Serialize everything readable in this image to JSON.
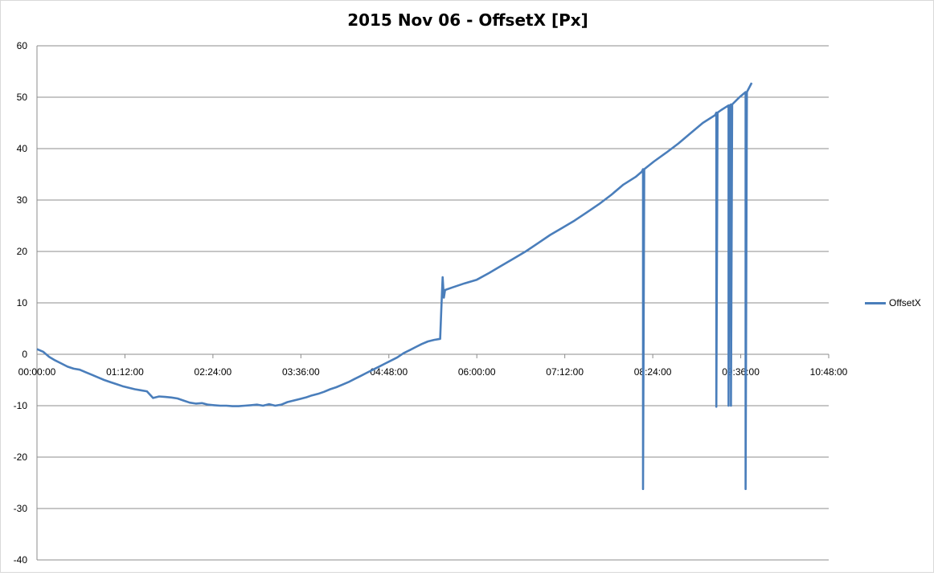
{
  "chart_data": {
    "type": "line",
    "title": "2015 Nov 06 -  OffsetX  [Px]",
    "xlabel": "",
    "ylabel": "",
    "ylim": [
      -40,
      60
    ],
    "yticks": [
      60,
      50,
      40,
      30,
      20,
      10,
      0,
      -10,
      -20,
      -30,
      -40
    ],
    "xlim_minutes": [
      0,
      648
    ],
    "xticks": [
      "00:00:00",
      "01:12:00",
      "02:24:00",
      "03:36:00",
      "04:48:00",
      "06:00:00",
      "07:12:00",
      "08:24:00",
      "09:36:00",
      "10:48:00"
    ],
    "grid": true,
    "legend_position": "right",
    "series": [
      {
        "name": "OffsetX",
        "color": "#4a7ebb",
        "points": [
          [
            "00:00",
            1.0
          ],
          [
            "00:05",
            0.5
          ],
          [
            "00:10",
            -0.5
          ],
          [
            "00:15",
            -1.2
          ],
          [
            "00:20",
            -1.8
          ],
          [
            "00:25",
            -2.4
          ],
          [
            "00:30",
            -2.8
          ],
          [
            "00:35",
            -3.0
          ],
          [
            "00:40",
            -3.5
          ],
          [
            "00:45",
            -4.0
          ],
          [
            "00:50",
            -4.5
          ],
          [
            "00:55",
            -5.0
          ],
          [
            "01:00",
            -5.4
          ],
          [
            "01:05",
            -5.8
          ],
          [
            "01:10",
            -6.2
          ],
          [
            "01:15",
            -6.5
          ],
          [
            "01:20",
            -6.8
          ],
          [
            "01:25",
            -7.0
          ],
          [
            "01:30",
            -7.2
          ],
          [
            "01:35",
            -8.5
          ],
          [
            "01:40",
            -8.2
          ],
          [
            "01:45",
            -8.3
          ],
          [
            "01:50",
            -8.4
          ],
          [
            "01:55",
            -8.6
          ],
          [
            "02:00",
            -9.0
          ],
          [
            "02:05",
            -9.4
          ],
          [
            "02:10",
            -9.6
          ],
          [
            "02:15",
            -9.5
          ],
          [
            "02:20",
            -9.8
          ],
          [
            "02:25",
            -9.9
          ],
          [
            "02:30",
            -10.0
          ],
          [
            "02:35",
            -10.0
          ],
          [
            "02:40",
            -10.1
          ],
          [
            "02:45",
            -10.1
          ],
          [
            "02:50",
            -10.0
          ],
          [
            "02:55",
            -9.9
          ],
          [
            "03:00",
            -9.8
          ],
          [
            "03:05",
            -10.0
          ],
          [
            "03:10",
            -9.7
          ],
          [
            "03:15",
            -10.0
          ],
          [
            "03:20",
            -9.8
          ],
          [
            "03:25",
            -9.3
          ],
          [
            "03:30",
            -9.0
          ],
          [
            "03:35",
            -8.7
          ],
          [
            "03:40",
            -8.4
          ],
          [
            "03:45",
            -8.0
          ],
          [
            "03:50",
            -7.7
          ],
          [
            "03:55",
            -7.3
          ],
          [
            "04:00",
            -6.8
          ],
          [
            "04:05",
            -6.4
          ],
          [
            "04:10",
            -5.9
          ],
          [
            "04:15",
            -5.4
          ],
          [
            "04:20",
            -4.8
          ],
          [
            "04:25",
            -4.2
          ],
          [
            "04:30",
            -3.6
          ],
          [
            "04:35",
            -3.0
          ],
          [
            "04:40",
            -2.4
          ],
          [
            "04:45",
            -1.8
          ],
          [
            "04:50",
            -1.2
          ],
          [
            "04:55",
            -0.6
          ],
          [
            "05:00",
            0.2
          ],
          [
            "05:05",
            0.8
          ],
          [
            "05:10",
            1.4
          ],
          [
            "05:15",
            2.0
          ],
          [
            "05:20",
            2.5
          ],
          [
            "05:25",
            2.8
          ],
          [
            "05:30",
            3.0
          ],
          [
            "05:31",
            9.0
          ],
          [
            "05:32",
            15.0
          ],
          [
            "05:33",
            11.0
          ],
          [
            "05:34",
            12.5
          ],
          [
            "05:40",
            13.0
          ],
          [
            "05:50",
            13.8
          ],
          [
            "06:00",
            14.5
          ],
          [
            "06:10",
            15.8
          ],
          [
            "06:20",
            17.2
          ],
          [
            "06:30",
            18.6
          ],
          [
            "06:40",
            20.0
          ],
          [
            "06:50",
            21.6
          ],
          [
            "07:00",
            23.2
          ],
          [
            "07:10",
            24.6
          ],
          [
            "07:20",
            26.0
          ],
          [
            "07:30",
            27.6
          ],
          [
            "07:40",
            29.2
          ],
          [
            "07:50",
            31.0
          ],
          [
            "08:00",
            33.0
          ],
          [
            "08:10",
            34.5
          ],
          [
            "08:15",
            35.5
          ],
          [
            "08:16",
            36.0
          ],
          [
            "08:16",
            -26.2
          ],
          [
            "08:17",
            36.0
          ],
          [
            "08:25",
            37.5
          ],
          [
            "08:35",
            39.2
          ],
          [
            "08:45",
            41.0
          ],
          [
            "08:55",
            43.0
          ],
          [
            "09:05",
            45.0
          ],
          [
            "09:15",
            46.5
          ],
          [
            "09:16",
            47.0
          ],
          [
            "09:16",
            -10.2
          ],
          [
            "09:17",
            47.0
          ],
          [
            "09:20",
            47.5
          ],
          [
            "09:26",
            48.4
          ],
          [
            "09:26",
            -10.0
          ],
          [
            "09:27",
            48.4
          ],
          [
            "09:28",
            48.6
          ],
          [
            "09:28",
            -10.0
          ],
          [
            "09:29",
            48.6
          ],
          [
            "09:35",
            50.0
          ],
          [
            "09:40",
            51.0
          ],
          [
            "09:40",
            -26.2
          ],
          [
            "09:41",
            51.0
          ],
          [
            "09:45",
            52.8
          ]
        ]
      }
    ]
  }
}
